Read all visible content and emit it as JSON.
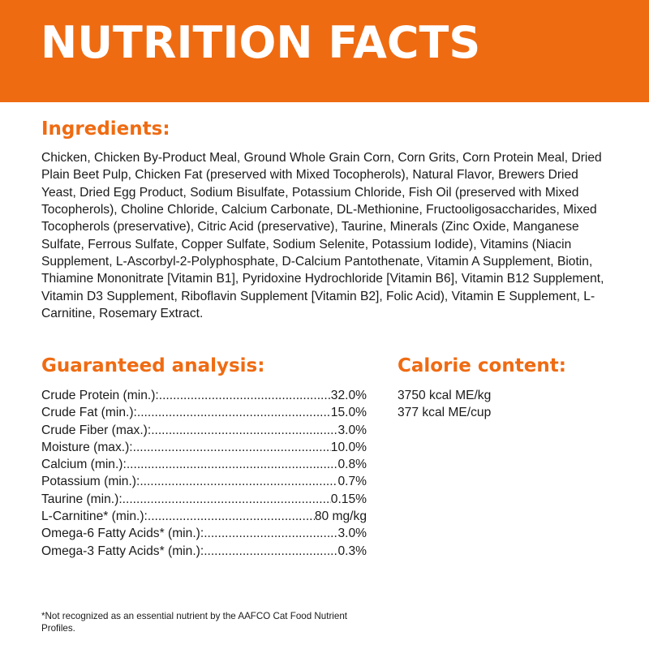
{
  "header": {
    "title": "NUTRITION FACTS"
  },
  "ingredients": {
    "title": "Ingredients:",
    "text": "Chicken, Chicken By-Product Meal, Ground Whole Grain Corn, Corn Grits, Corn Protein Meal, Dried Plain Beet Pulp, Chicken Fat (preserved with Mixed Tocopherols), Natural Flavor, Brewers Dried Yeast, Dried Egg Product, Sodium Bisulfate, Potassium Chloride, Fish Oil (preserved with Mixed Tocopherols), Choline Chloride, Calcium Carbonate, DL-Methionine, Fructooligosaccharides, Mixed Tocopherols (preservative), Citric Acid (preservative), Taurine, Minerals (Zinc Oxide, Manganese Sulfate, Ferrous Sulfate, Copper Sulfate, Sodium Selenite, Potassium Iodide), Vitamins (Niacin Supplement, L-Ascorbyl-2-Polyphosphate, D-Calcium Pantothenate, Vitamin A Supplement, Biotin, Thiamine Mononitrate [Vitamin B1], Pyridoxine Hydrochloride [Vitamin B6], Vitamin B12 Supplement, Vitamin D3 Supplement, Riboflavin Supplement [Vitamin B2], Folic Acid), Vitamin E Supplement, L-Carnitine, Rosemary Extract."
  },
  "guaranteed_analysis": {
    "title": "Guaranteed analysis:",
    "rows": [
      {
        "label": "Crude Protein (min.):",
        "value": "32.0%"
      },
      {
        "label": "Crude Fat (min.):",
        "value": "15.0%"
      },
      {
        "label": "Crude Fiber (max.):",
        "value": "3.0%"
      },
      {
        "label": "Moisture (max.):",
        "value": "10.0%"
      },
      {
        "label": "Calcium (min.):",
        "value": "0.8%"
      },
      {
        "label": "Potassium (min.):",
        "value": "0.7%"
      },
      {
        "label": "Taurine (min.):",
        "value": "0.15%"
      },
      {
        "label": "L-Carnitine* (min.):",
        "value": "80 mg/kg"
      },
      {
        "label": "Omega-6 Fatty Acids* (min.):",
        "value": "3.0%"
      },
      {
        "label": "Omega-3 Fatty Acids* (min.):",
        "value": "0.3%"
      }
    ]
  },
  "calorie_content": {
    "title": "Calorie content:",
    "lines": [
      "3750 kcal ME/kg",
      "377 kcal ME/cup"
    ]
  },
  "footnote": "*Not recognized as an essential nutrient by the AAFCO Cat Food Nutrient Profiles.",
  "colors": {
    "accent": "#ef6b12",
    "text": "#1a1a1a",
    "background": "#ffffff"
  }
}
